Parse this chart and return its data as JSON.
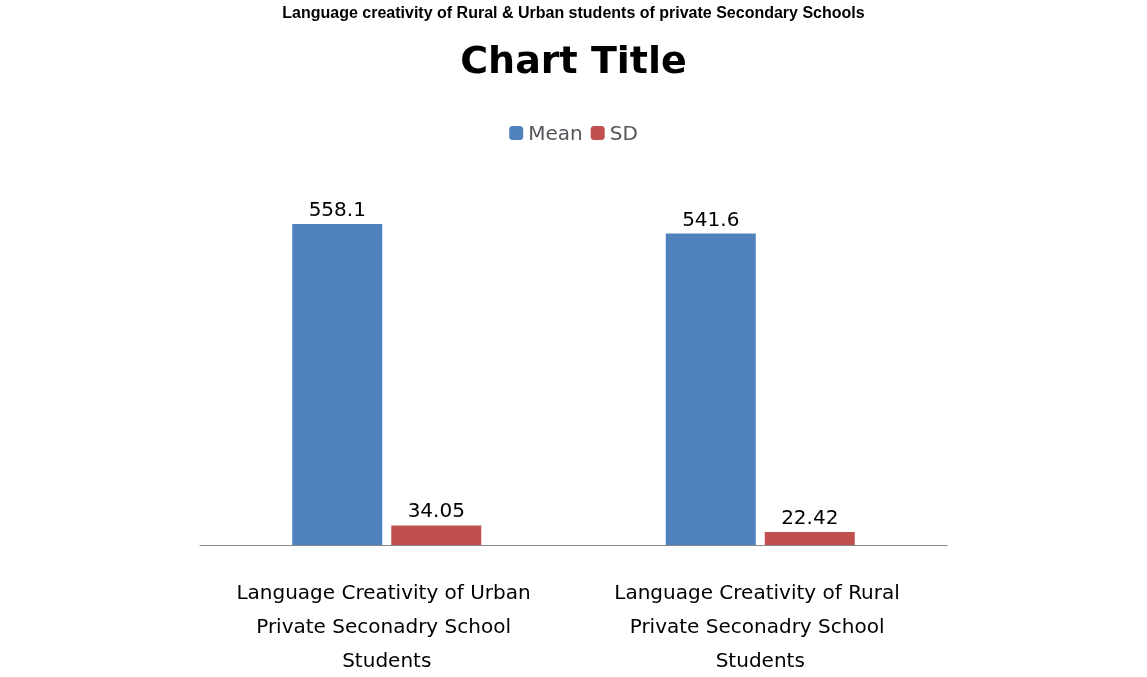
{
  "chart_data": {
    "type": "bar",
    "title": "Chart Title",
    "annotations": [
      "Language creativity of Rural & Urban students of private Secondary Schools"
    ],
    "categories": [
      "Language Creativity of Urban Private Seconadry School Students",
      "Language Creativity of Rural Private Seconadry School Students"
    ],
    "series": [
      {
        "name": "Mean",
        "color": "#4f81bd",
        "values": [
          558.1,
          541.6
        ]
      },
      {
        "name": "SD",
        "color": "#c0504d",
        "values": [
          34.05,
          22.42
        ]
      }
    ],
    "data_labels": true,
    "legend": "top"
  }
}
